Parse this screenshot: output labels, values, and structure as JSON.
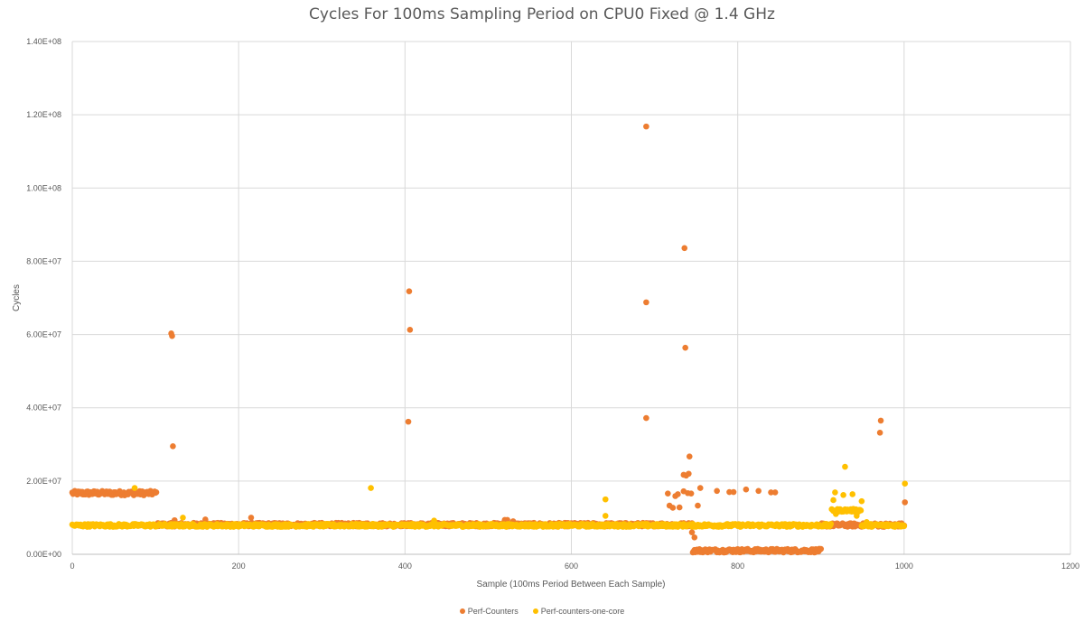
{
  "chart_data": {
    "type": "scatter",
    "title": "Cycles For 100ms Sampling Period on CPU0 Fixed @ 1.4 GHz",
    "xlabel": "Sample (100ms Period Between Each Sample)",
    "ylabel": "Cycles",
    "xlim": [
      0,
      1200
    ],
    "ylim": [
      0,
      140000000
    ],
    "x_ticks": [
      "0",
      "200",
      "400",
      "600",
      "800",
      "1000",
      "1200"
    ],
    "y_ticks": [
      "0.00E+00",
      "2.00E+07",
      "4.00E+07",
      "6.00E+07",
      "8.00E+07",
      "1.00E+08",
      "1.20E+08",
      "1.40E+08"
    ],
    "grid": true,
    "legend_position": "bottom",
    "series": [
      {
        "name": "Perf-Counters",
        "color": "#ED7D31",
        "baseline_segments": [
          {
            "x": [
              0,
              101
            ],
            "y": 16700000,
            "jitter": 600000
          },
          {
            "x": [
              102,
              745
            ],
            "y": 8100000,
            "jitter": 500000
          },
          {
            "x": [
              746,
              900
            ],
            "y": 1000000,
            "jitter": 500000
          },
          {
            "x": [
              901,
              1000
            ],
            "y": 8000000,
            "jitter": 500000
          }
        ],
        "points": [
          [
            119,
            60300000
          ],
          [
            120,
            59600000
          ],
          [
            121,
            29500000
          ],
          [
            405,
            71800000
          ],
          [
            406,
            61300000
          ],
          [
            404,
            36200000
          ],
          [
            690,
            116800000
          ],
          [
            690,
            68800000
          ],
          [
            690,
            37200000
          ],
          [
            736,
            83600000
          ],
          [
            737,
            56400000
          ],
          [
            742,
            26700000
          ],
          [
            735,
            21700000
          ],
          [
            738,
            21500000
          ],
          [
            741,
            22000000
          ],
          [
            735,
            17200000
          ],
          [
            740,
            16700000
          ],
          [
            744,
            16600000
          ],
          [
            716,
            16600000
          ],
          [
            725,
            15900000
          ],
          [
            728,
            16400000
          ],
          [
            718,
            13300000
          ],
          [
            722,
            12700000
          ],
          [
            730,
            12800000
          ],
          [
            755,
            18100000
          ],
          [
            752,
            13300000
          ],
          [
            745,
            6000000
          ],
          [
            748,
            4600000
          ],
          [
            775,
            17300000
          ],
          [
            790,
            17000000
          ],
          [
            795,
            17000000
          ],
          [
            810,
            17700000
          ],
          [
            825,
            17300000
          ],
          [
            840,
            16900000
          ],
          [
            845,
            16900000
          ],
          [
            972,
            36500000
          ],
          [
            971,
            33200000
          ],
          [
            1001,
            14200000
          ],
          [
            215,
            10000000
          ],
          [
            520,
            9400000
          ],
          [
            523,
            9400000
          ],
          [
            530,
            9000000
          ],
          [
            123,
            9300000
          ],
          [
            160,
            9500000
          ]
        ]
      },
      {
        "name": "Perf-counters-one-core",
        "color": "#FFC000",
        "baseline_segments": [
          {
            "x": [
              0,
              912
            ],
            "y": 7900000,
            "jitter": 400000
          },
          {
            "x": [
              913,
              948
            ],
            "y": 12000000,
            "jitter": 400000
          },
          {
            "x": [
              949,
              1000
            ],
            "y": 7900000,
            "jitter": 400000
          }
        ],
        "points": [
          [
            75,
            18100000
          ],
          [
            133,
            10000000
          ],
          [
            359,
            18100000
          ],
          [
            435,
            9200000
          ],
          [
            641,
            15000000
          ],
          [
            641,
            10500000
          ],
          [
            917,
            16900000
          ],
          [
            915,
            14800000
          ],
          [
            927,
            16200000
          ],
          [
            929,
            23900000
          ],
          [
            938,
            16400000
          ],
          [
            949,
            14500000
          ],
          [
            943,
            10500000
          ],
          [
            955,
            8800000
          ],
          [
            1001,
            19300000
          ],
          [
            918,
            11000000
          ]
        ]
      }
    ]
  }
}
